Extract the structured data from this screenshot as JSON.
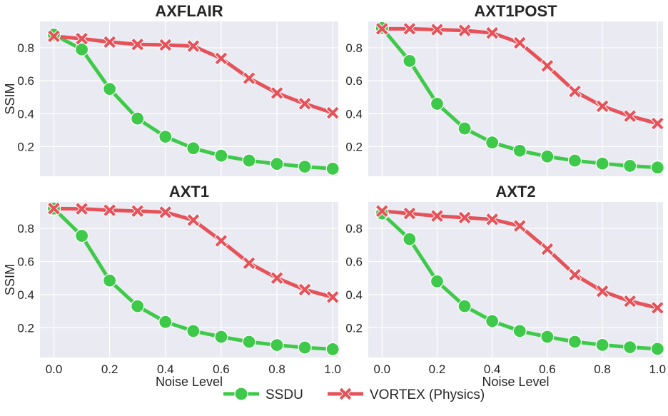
{
  "chart_data": {
    "type": "line",
    "x": [
      0.0,
      0.1,
      0.2,
      0.3,
      0.4,
      0.5,
      0.6,
      0.7,
      0.8,
      0.9,
      1.0
    ],
    "xlabel": "Noise Level",
    "ylabel": "SSIM",
    "xlim": [
      -0.05,
      1.02
    ],
    "x_ticks": [
      "0.0",
      "0.2",
      "0.4",
      "0.6",
      "0.8",
      "1.0"
    ],
    "y_ticks": [
      "0.2",
      "0.4",
      "0.6",
      "0.8"
    ],
    "grid": true,
    "legend": {
      "position": "bottom-center",
      "entries": [
        "SSDU",
        "VORTEX (Physics)"
      ]
    },
    "colors": {
      "SSDU": "#3fc94a",
      "VORTEX (Physics)": "#e5525a",
      "background": "#eaeaf2"
    },
    "panels": [
      {
        "title": "AXFLAIR",
        "ylim": [
          0.02,
          0.96
        ],
        "series": [
          {
            "name": "SSDU",
            "values": [
              0.88,
              0.79,
              0.55,
              0.37,
              0.26,
              0.19,
              0.145,
              0.115,
              0.095,
              0.078,
              0.066
            ]
          },
          {
            "name": "VORTEX (Physics)",
            "values": [
              0.87,
              0.855,
              0.835,
              0.82,
              0.817,
              0.81,
              0.735,
              0.615,
              0.525,
              0.46,
              0.405
            ]
          }
        ]
      },
      {
        "title": "AXT1POST",
        "ylim": [
          0.02,
          0.96
        ],
        "series": [
          {
            "name": "SSDU",
            "values": [
              0.92,
              0.72,
              0.46,
              0.31,
              0.225,
              0.175,
              0.14,
              0.115,
              0.097,
              0.083,
              0.073
            ]
          },
          {
            "name": "VORTEX (Physics)",
            "values": [
              0.915,
              0.915,
              0.91,
              0.905,
              0.89,
              0.83,
              0.69,
              0.535,
              0.445,
              0.385,
              0.34
            ]
          }
        ]
      },
      {
        "title": "AXT1",
        "ylim": [
          0.02,
          0.96
        ],
        "series": [
          {
            "name": "SSDU",
            "values": [
              0.92,
              0.755,
              0.485,
              0.33,
              0.235,
              0.18,
              0.145,
              0.115,
              0.095,
              0.08,
              0.07
            ]
          },
          {
            "name": "VORTEX (Physics)",
            "values": [
              0.92,
              0.918,
              0.91,
              0.905,
              0.898,
              0.85,
              0.725,
              0.59,
              0.5,
              0.43,
              0.385
            ]
          }
        ]
      },
      {
        "title": "AXT2",
        "ylim": [
          0.02,
          0.96
        ],
        "series": [
          {
            "name": "SSDU",
            "values": [
              0.89,
              0.735,
              0.48,
              0.33,
              0.24,
              0.18,
              0.145,
              0.115,
              0.096,
              0.082,
              0.072
            ]
          },
          {
            "name": "VORTEX (Physics)",
            "values": [
              0.905,
              0.89,
              0.875,
              0.865,
              0.855,
              0.815,
              0.675,
              0.52,
              0.42,
              0.36,
              0.32
            ]
          }
        ]
      }
    ]
  }
}
